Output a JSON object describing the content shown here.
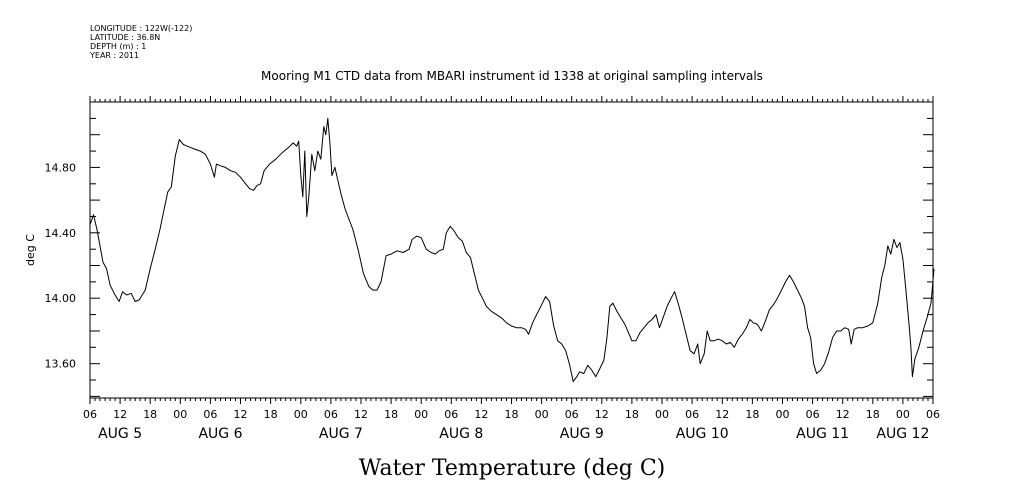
{
  "header": {
    "longitude": "LONGITUDE : 122W(-122)",
    "latitude": "LATITUDE : 36.8N",
    "depth": "DEPTH (m) : 1",
    "year": "YEAR : 2011",
    "title": "Mooring M1 CTD data from MBARI instrument id 1338 at original sampling intervals"
  },
  "chart_data": {
    "type": "line",
    "title": "Mooring M1 CTD data from MBARI instrument id 1338 at original sampling intervals",
    "xlabel": "Water Temperature (deg C)",
    "ylabel": "deg C",
    "x_unit": "hours since Aug 5 00:00 (2011)",
    "xlim": [
      6,
      174
    ],
    "ylim": [
      13.39,
      15.2
    ],
    "yticks": [
      13.6,
      14.0,
      14.4,
      14.8
    ],
    "ytick_labels": [
      "13.60",
      "14.00",
      "14.40",
      "14.80"
    ],
    "xtick_hours": [
      6,
      12,
      18,
      24,
      30,
      36,
      42,
      48,
      54,
      60,
      66,
      72,
      78,
      84,
      90,
      96,
      102,
      108,
      114,
      120,
      126,
      132,
      138,
      144,
      150,
      156,
      162,
      168,
      174
    ],
    "xtick_labels": [
      "06",
      "12",
      "18",
      "00",
      "06",
      "12",
      "18",
      "00",
      "06",
      "12",
      "18",
      "00",
      "06",
      "12",
      "18",
      "00",
      "06",
      "12",
      "18",
      "00",
      "06",
      "12",
      "18",
      "00",
      "06",
      "12",
      "18",
      "00",
      "06"
    ],
    "day_labels": [
      {
        "label": "AUG  5",
        "hour": 12
      },
      {
        "label": "AUG  6",
        "hour": 32
      },
      {
        "label": "AUG  7",
        "hour": 56
      },
      {
        "label": "AUG  8",
        "hour": 80
      },
      {
        "label": "AUG  9",
        "hour": 104
      },
      {
        "label": "AUG 10",
        "hour": 128
      },
      {
        "label": "AUG 11",
        "hour": 152
      },
      {
        "label": "AUG 12",
        "hour": 168
      }
    ],
    "grid": false,
    "series": [
      {
        "points": [
          [
            6,
            14.45
          ],
          [
            6.7,
            14.51
          ],
          [
            7.4,
            14.42
          ],
          [
            8,
            14.32
          ],
          [
            8.6,
            14.22
          ],
          [
            9.3,
            14.18
          ],
          [
            10,
            14.08
          ],
          [
            11,
            14.02
          ],
          [
            11.8,
            13.98
          ],
          [
            12.5,
            14.04
          ],
          [
            13.3,
            14.02
          ],
          [
            14.2,
            14.03
          ],
          [
            15,
            13.98
          ],
          [
            15.8,
            13.99
          ],
          [
            17,
            14.05
          ],
          [
            18,
            14.18
          ],
          [
            19,
            14.3
          ],
          [
            20,
            14.43
          ],
          [
            20.8,
            14.55
          ],
          [
            21.5,
            14.65
          ],
          [
            22.2,
            14.68
          ],
          [
            23,
            14.87
          ],
          [
            23.8,
            14.97
          ],
          [
            24.6,
            14.94
          ],
          [
            25.4,
            14.93
          ],
          [
            26.2,
            14.92
          ],
          [
            27,
            14.91
          ],
          [
            28,
            14.9
          ],
          [
            29,
            14.88
          ],
          [
            30,
            14.82
          ],
          [
            30.8,
            14.74
          ],
          [
            31.2,
            14.82
          ],
          [
            32,
            14.81
          ],
          [
            33,
            14.8
          ],
          [
            34,
            14.78
          ],
          [
            35,
            14.77
          ],
          [
            36,
            14.74
          ],
          [
            37,
            14.7
          ],
          [
            37.8,
            14.67
          ],
          [
            38.6,
            14.66
          ],
          [
            39.3,
            14.69
          ],
          [
            40,
            14.7
          ],
          [
            40.7,
            14.78
          ],
          [
            41.8,
            14.82
          ],
          [
            43,
            14.85
          ],
          [
            44.3,
            14.89
          ],
          [
            45.5,
            14.92
          ],
          [
            46.5,
            14.95
          ],
          [
            47.2,
            14.93
          ],
          [
            47.6,
            14.96
          ],
          [
            48,
            14.75
          ],
          [
            48.4,
            14.62
          ],
          [
            48.8,
            14.9
          ],
          [
            49.2,
            14.5
          ],
          [
            49.6,
            14.62
          ],
          [
            50.2,
            14.88
          ],
          [
            50.8,
            14.78
          ],
          [
            51.4,
            14.9
          ],
          [
            52,
            14.85
          ],
          [
            52.6,
            15.05
          ],
          [
            53,
            15.0
          ],
          [
            53.4,
            15.1
          ],
          [
            53.8,
            14.95
          ],
          [
            54.2,
            14.75
          ],
          [
            54.8,
            14.8
          ],
          [
            55.4,
            14.72
          ],
          [
            56,
            14.64
          ],
          [
            56.8,
            14.55
          ],
          [
            57.4,
            14.5
          ],
          [
            58.4,
            14.42
          ],
          [
            59.4,
            14.3
          ],
          [
            60.5,
            14.15
          ],
          [
            61.6,
            14.07
          ],
          [
            62.4,
            14.05
          ],
          [
            63.2,
            14.05
          ],
          [
            64,
            14.1
          ],
          [
            65,
            14.26
          ],
          [
            66,
            14.27
          ],
          [
            67.2,
            14.29
          ],
          [
            68.4,
            14.28
          ],
          [
            69.6,
            14.3
          ],
          [
            70.2,
            14.36
          ],
          [
            71.1,
            14.38
          ],
          [
            72,
            14.37
          ],
          [
            73,
            14.3
          ],
          [
            74,
            14.28
          ],
          [
            74.8,
            14.27
          ],
          [
            75.6,
            14.29
          ],
          [
            76.4,
            14.3
          ],
          [
            77,
            14.4
          ],
          [
            77.8,
            14.44
          ],
          [
            78.6,
            14.41
          ],
          [
            79.4,
            14.37
          ],
          [
            80.2,
            14.35
          ],
          [
            81,
            14.28
          ],
          [
            81.8,
            14.25
          ],
          [
            82.6,
            14.15
          ],
          [
            83.4,
            14.05
          ],
          [
            84.2,
            14.0
          ],
          [
            85,
            13.95
          ],
          [
            86,
            13.92
          ],
          [
            87,
            13.9
          ],
          [
            88,
            13.88
          ],
          [
            89,
            13.85
          ],
          [
            90,
            13.83
          ],
          [
            91,
            13.82
          ],
          [
            92,
            13.82
          ],
          [
            92.8,
            13.81
          ],
          [
            93.4,
            13.78
          ],
          [
            94.2,
            13.85
          ],
          [
            95,
            13.9
          ],
          [
            96,
            13.96
          ],
          [
            96.8,
            14.01
          ],
          [
            97.6,
            13.98
          ],
          [
            98.4,
            13.83
          ],
          [
            99.2,
            13.74
          ],
          [
            100,
            13.72
          ],
          [
            100.8,
            13.68
          ],
          [
            101.6,
            13.59
          ],
          [
            102.3,
            13.49
          ],
          [
            103,
            13.52
          ],
          [
            103.6,
            13.55
          ],
          [
            104.4,
            13.54
          ],
          [
            105.2,
            13.59
          ],
          [
            106,
            13.56
          ],
          [
            106.8,
            13.52
          ],
          [
            107.6,
            13.57
          ],
          [
            108.4,
            13.62
          ],
          [
            109,
            13.75
          ],
          [
            109.6,
            13.95
          ],
          [
            110.2,
            13.97
          ],
          [
            111,
            13.92
          ],
          [
            111.8,
            13.88
          ],
          [
            112.6,
            13.84
          ],
          [
            113.3,
            13.79
          ],
          [
            114,
            13.74
          ],
          [
            114.8,
            13.74
          ],
          [
            115.6,
            13.79
          ],
          [
            116.4,
            13.82
          ],
          [
            117.2,
            13.85
          ],
          [
            118,
            13.87
          ],
          [
            118.8,
            13.9
          ],
          [
            119.5,
            13.82
          ],
          [
            120.2,
            13.88
          ],
          [
            121,
            13.95
          ],
          [
            121.8,
            14.0
          ],
          [
            122.5,
            14.04
          ],
          [
            123.2,
            13.97
          ],
          [
            124,
            13.88
          ],
          [
            124.8,
            13.78
          ],
          [
            125.6,
            13.68
          ],
          [
            126.4,
            13.66
          ],
          [
            127.1,
            13.72
          ],
          [
            127.6,
            13.6
          ],
          [
            128.4,
            13.66
          ],
          [
            129,
            13.8
          ],
          [
            129.6,
            13.74
          ],
          [
            130.4,
            13.74
          ],
          [
            131.2,
            13.75
          ],
          [
            132,
            13.74
          ],
          [
            132.8,
            13.72
          ],
          [
            133.6,
            13.73
          ],
          [
            134.4,
            13.7
          ],
          [
            135.2,
            13.75
          ],
          [
            136,
            13.78
          ],
          [
            136.8,
            13.82
          ],
          [
            137.5,
            13.87
          ],
          [
            138.2,
            13.85
          ],
          [
            139,
            13.84
          ],
          [
            139.8,
            13.8
          ],
          [
            140.6,
            13.86
          ],
          [
            141.4,
            13.93
          ],
          [
            142.2,
            13.96
          ],
          [
            143,
            14.0
          ],
          [
            143.8,
            14.05
          ],
          [
            144.6,
            14.1
          ],
          [
            145.4,
            14.14
          ],
          [
            146.2,
            14.1
          ],
          [
            147,
            14.05
          ],
          [
            147.8,
            14.0
          ],
          [
            148.4,
            13.95
          ],
          [
            149,
            13.82
          ],
          [
            149.6,
            13.76
          ],
          [
            150.2,
            13.6
          ],
          [
            150.8,
            13.54
          ],
          [
            151.6,
            13.56
          ],
          [
            152.4,
            13.6
          ],
          [
            153.2,
            13.67
          ],
          [
            154,
            13.76
          ],
          [
            154.8,
            13.8
          ],
          [
            155.6,
            13.8
          ],
          [
            156.4,
            13.82
          ],
          [
            157.2,
            13.81
          ],
          [
            157.7,
            13.72
          ],
          [
            158.3,
            13.81
          ],
          [
            159,
            13.82
          ],
          [
            160,
            13.82
          ],
          [
            161,
            13.83
          ],
          [
            162,
            13.85
          ],
          [
            163,
            13.97
          ],
          [
            163.8,
            14.13
          ],
          [
            164.4,
            14.2
          ],
          [
            165,
            14.32
          ],
          [
            165.6,
            14.27
          ],
          [
            166.2,
            14.36
          ],
          [
            166.8,
            14.31
          ],
          [
            167.4,
            14.34
          ],
          [
            168,
            14.24
          ],
          [
            168.6,
            14.05
          ],
          [
            169.2,
            13.85
          ],
          [
            169.6,
            13.7
          ],
          [
            169.9,
            13.52
          ],
          [
            170.4,
            13.63
          ],
          [
            171.2,
            13.7
          ],
          [
            172,
            13.8
          ],
          [
            172.8,
            13.88
          ],
          [
            173.6,
            13.97
          ],
          [
            174.2,
            14.18
          ]
        ]
      }
    ]
  }
}
